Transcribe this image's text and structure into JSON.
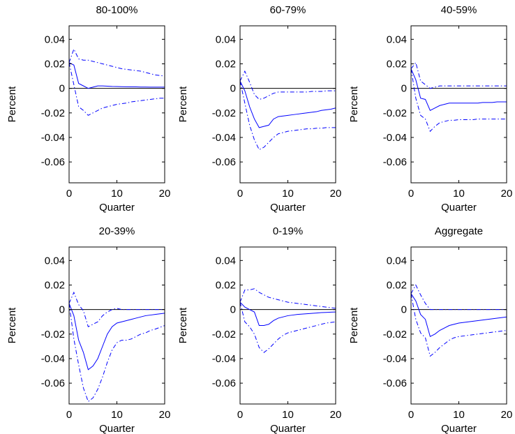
{
  "chart_data": [
    {
      "type": "line",
      "title": "80-100%",
      "xlabel": "Quarter",
      "ylabel": "Percent",
      "x": [
        0,
        1,
        2,
        3,
        4,
        5,
        6,
        7,
        8,
        9,
        10,
        11,
        12,
        13,
        14,
        15,
        16,
        17,
        18,
        19,
        20
      ],
      "xlim": [
        0,
        20
      ],
      "xticks": [
        0,
        10,
        20
      ],
      "ylim": [
        -0.077,
        0.051
      ],
      "yticks": [
        -0.06,
        -0.04,
        -0.02,
        0,
        0.02,
        0.04
      ],
      "reference_line": 0,
      "reference_color": "#000000",
      "series": [
        {
          "color": "#0000ff",
          "dash": "solid",
          "values": [
            0.021,
            0.019,
            0.004,
            0.002,
            0.0,
            0.001,
            0.002,
            0.002,
            0.0018,
            0.0016,
            0.0015,
            0.0014,
            0.0013,
            0.0012,
            0.0012,
            0.0011,
            0.0011,
            0.001,
            0.001,
            0.001,
            0.001
          ]
        },
        {
          "color": "#0000ff",
          "dash": "dashdot",
          "values": [
            0.021,
            0.032,
            0.024,
            0.023,
            0.023,
            0.022,
            0.021,
            0.02,
            0.019,
            0.018,
            0.017,
            0.016,
            0.0155,
            0.015,
            0.0145,
            0.014,
            0.013,
            0.012,
            0.011,
            0.0105,
            0.01
          ]
        },
        {
          "color": "#0000ff",
          "dash": "dashdot",
          "values": [
            0.021,
            0.003,
            -0.015,
            -0.018,
            -0.022,
            -0.02,
            -0.018,
            -0.016,
            -0.015,
            -0.014,
            -0.013,
            -0.0125,
            -0.012,
            -0.011,
            -0.0105,
            -0.01,
            -0.0095,
            -0.009,
            -0.0085,
            -0.008,
            -0.008
          ]
        }
      ]
    },
    {
      "type": "line",
      "title": "60-79%",
      "xlabel": "Quarter",
      "ylabel": "Percent",
      "x": [
        0,
        1,
        2,
        3,
        4,
        5,
        6,
        7,
        8,
        9,
        10,
        11,
        12,
        13,
        14,
        15,
        16,
        17,
        18,
        19,
        20
      ],
      "xlim": [
        0,
        20
      ],
      "xticks": [
        0,
        10,
        20
      ],
      "ylim": [
        -0.077,
        0.051
      ],
      "yticks": [
        -0.06,
        -0.04,
        -0.02,
        0,
        0.02,
        0.04
      ],
      "reference_line": 0,
      "reference_color": "#000000",
      "series": [
        {
          "color": "#0000ff",
          "dash": "solid",
          "values": [
            0.006,
            -0.002,
            -0.015,
            -0.025,
            -0.032,
            -0.031,
            -0.03,
            -0.025,
            -0.023,
            -0.0225,
            -0.022,
            -0.0215,
            -0.021,
            -0.0205,
            -0.02,
            -0.0195,
            -0.019,
            -0.018,
            -0.0175,
            -0.017,
            -0.016
          ]
        },
        {
          "color": "#0000ff",
          "dash": "dashdot",
          "values": [
            0.006,
            0.014,
            0.005,
            -0.005,
            -0.009,
            -0.008,
            -0.006,
            -0.004,
            -0.003,
            -0.003,
            -0.003,
            -0.003,
            -0.003,
            -0.003,
            -0.003,
            -0.0025,
            -0.0025,
            -0.0025,
            -0.002,
            -0.002,
            -0.002
          ]
        },
        {
          "color": "#0000ff",
          "dash": "dashdot",
          "values": [
            0.006,
            -0.012,
            -0.03,
            -0.042,
            -0.05,
            -0.048,
            -0.044,
            -0.04,
            -0.037,
            -0.036,
            -0.035,
            -0.0345,
            -0.034,
            -0.0335,
            -0.033,
            -0.033,
            -0.0325,
            -0.0325,
            -0.032,
            -0.032,
            -0.032
          ]
        }
      ]
    },
    {
      "type": "line",
      "title": "40-59%",
      "xlabel": "Quarter",
      "ylabel": "Percent",
      "x": [
        0,
        1,
        2,
        3,
        4,
        5,
        6,
        7,
        8,
        9,
        10,
        11,
        12,
        13,
        14,
        15,
        16,
        17,
        18,
        19,
        20
      ],
      "xlim": [
        0,
        20
      ],
      "xticks": [
        0,
        10,
        20
      ],
      "ylim": [
        -0.077,
        0.051
      ],
      "yticks": [
        -0.06,
        -0.04,
        -0.02,
        0,
        0.02,
        0.04
      ],
      "reference_line": 0,
      "reference_color": "#000000",
      "series": [
        {
          "color": "#0000ff",
          "dash": "solid",
          "values": [
            0.016,
            0.007,
            -0.008,
            -0.009,
            -0.018,
            -0.016,
            -0.014,
            -0.013,
            -0.012,
            -0.012,
            -0.012,
            -0.012,
            -0.012,
            -0.012,
            -0.012,
            -0.0115,
            -0.0115,
            -0.0115,
            -0.011,
            -0.011,
            -0.011
          ]
        },
        {
          "color": "#0000ff",
          "dash": "dashdot",
          "values": [
            0.016,
            0.021,
            0.006,
            0.003,
            0.0,
            0.001,
            0.002,
            0.002,
            0.002,
            0.002,
            0.002,
            0.002,
            0.002,
            0.002,
            0.002,
            0.002,
            0.002,
            0.002,
            0.002,
            0.002,
            0.002
          ]
        },
        {
          "color": "#0000ff",
          "dash": "dashdot",
          "values": [
            0.016,
            -0.008,
            -0.022,
            -0.025,
            -0.035,
            -0.031,
            -0.028,
            -0.027,
            -0.026,
            -0.026,
            -0.0255,
            -0.0255,
            -0.0255,
            -0.0255,
            -0.025,
            -0.025,
            -0.025,
            -0.025,
            -0.025,
            -0.025,
            -0.025
          ]
        }
      ]
    },
    {
      "type": "line",
      "title": "20-39%",
      "xlabel": "Quarter",
      "ylabel": "Percent",
      "x": [
        0,
        1,
        2,
        3,
        4,
        5,
        6,
        7,
        8,
        9,
        10,
        11,
        12,
        13,
        14,
        15,
        16,
        17,
        18,
        19,
        20
      ],
      "xlim": [
        0,
        20
      ],
      "xticks": [
        0,
        10,
        20
      ],
      "ylim": [
        -0.077,
        0.051
      ],
      "yticks": [
        -0.06,
        -0.04,
        -0.02,
        0,
        0.02,
        0.04
      ],
      "reference_line": 0,
      "reference_color": "#000000",
      "series": [
        {
          "color": "#0000ff",
          "dash": "solid",
          "values": [
            0.005,
            -0.005,
            -0.025,
            -0.035,
            -0.049,
            -0.046,
            -0.04,
            -0.03,
            -0.02,
            -0.014,
            -0.011,
            -0.01,
            -0.009,
            -0.008,
            -0.007,
            -0.006,
            -0.005,
            -0.0045,
            -0.004,
            -0.0035,
            -0.003
          ]
        },
        {
          "color": "#0000ff",
          "dash": "dashdot",
          "values": [
            0.005,
            0.014,
            0.004,
            -0.001,
            -0.014,
            -0.012,
            -0.01,
            -0.005,
            -0.002,
            0.0,
            0.001,
            0.0,
            0.0,
            0.0,
            0.0,
            0.0,
            0.0,
            0.0,
            0.0,
            0.0,
            0.0
          ]
        },
        {
          "color": "#0000ff",
          "dash": "dashdot",
          "values": [
            0.005,
            -0.024,
            -0.045,
            -0.064,
            -0.075,
            -0.072,
            -0.065,
            -0.055,
            -0.043,
            -0.033,
            -0.027,
            -0.025,
            -0.025,
            -0.024,
            -0.022,
            -0.02,
            -0.019,
            -0.017,
            -0.016,
            -0.0145,
            -0.013
          ]
        }
      ]
    },
    {
      "type": "line",
      "title": "0-19%",
      "xlabel": "Quarter",
      "ylabel": "Percent",
      "x": [
        0,
        1,
        2,
        3,
        4,
        5,
        6,
        7,
        8,
        9,
        10,
        11,
        12,
        13,
        14,
        15,
        16,
        17,
        18,
        19,
        20
      ],
      "xlim": [
        0,
        20
      ],
      "xticks": [
        0,
        10,
        20
      ],
      "ylim": [
        -0.077,
        0.051
      ],
      "yticks": [
        -0.06,
        -0.04,
        -0.02,
        0,
        0.02,
        0.04
      ],
      "reference_line": 0,
      "reference_color": "#000000",
      "series": [
        {
          "color": "#0000ff",
          "dash": "solid",
          "values": [
            0.006,
            0.002,
            0.0,
            -0.002,
            -0.013,
            -0.013,
            -0.012,
            -0.009,
            -0.007,
            -0.006,
            -0.005,
            -0.0045,
            -0.004,
            -0.0037,
            -0.0034,
            -0.0031,
            -0.0028,
            -0.0025,
            -0.0023,
            -0.0021,
            -0.002
          ]
        },
        {
          "color": "#0000ff",
          "dash": "dashdot",
          "values": [
            0.006,
            0.016,
            0.016,
            0.017,
            0.014,
            0.012,
            0.01,
            0.009,
            0.008,
            0.007,
            0.006,
            0.0055,
            0.005,
            0.0045,
            0.004,
            0.0035,
            0.003,
            0.0025,
            0.002,
            0.0015,
            0.001
          ]
        },
        {
          "color": "#0000ff",
          "dash": "dashdot",
          "values": [
            0.006,
            -0.01,
            -0.014,
            -0.02,
            -0.031,
            -0.035,
            -0.032,
            -0.028,
            -0.024,
            -0.021,
            -0.019,
            -0.018,
            -0.017,
            -0.016,
            -0.015,
            -0.014,
            -0.013,
            -0.012,
            -0.011,
            -0.0105,
            -0.01
          ]
        }
      ]
    },
    {
      "type": "line",
      "title": "Aggregate",
      "xlabel": "Quarter",
      "ylabel": "Percent",
      "x": [
        0,
        1,
        2,
        3,
        4,
        5,
        6,
        7,
        8,
        9,
        10,
        11,
        12,
        13,
        14,
        15,
        16,
        17,
        18,
        19,
        20
      ],
      "xlim": [
        0,
        20
      ],
      "xticks": [
        0,
        10,
        20
      ],
      "ylim": [
        -0.077,
        0.051
      ],
      "yticks": [
        -0.06,
        -0.04,
        -0.02,
        0,
        0.02,
        0.04
      ],
      "reference_line": 0,
      "reference_color": "#000000",
      "series": [
        {
          "color": "#0000ff",
          "dash": "solid",
          "values": [
            0.013,
            0.007,
            -0.004,
            -0.008,
            -0.022,
            -0.02,
            -0.017,
            -0.015,
            -0.013,
            -0.012,
            -0.011,
            -0.0105,
            -0.01,
            -0.0095,
            -0.009,
            -0.0085,
            -0.008,
            -0.0075,
            -0.007,
            -0.0065,
            -0.006
          ]
        },
        {
          "color": "#0000ff",
          "dash": "dashdot",
          "values": [
            0.013,
            0.02,
            0.012,
            0.005,
            0.0,
            0.0,
            0.0,
            0.0,
            0.0,
            0.0,
            0.0,
            0.0,
            0.0,
            0.0,
            0.0,
            0.0,
            0.0,
            0.0,
            0.0,
            0.0,
            0.0
          ]
        },
        {
          "color": "#0000ff",
          "dash": "dashdot",
          "values": [
            0.013,
            -0.008,
            -0.019,
            -0.023,
            -0.038,
            -0.035,
            -0.031,
            -0.028,
            -0.025,
            -0.023,
            -0.022,
            -0.0215,
            -0.021,
            -0.0205,
            -0.02,
            -0.0195,
            -0.019,
            -0.0185,
            -0.018,
            -0.0175,
            -0.017
          ]
        }
      ]
    }
  ]
}
